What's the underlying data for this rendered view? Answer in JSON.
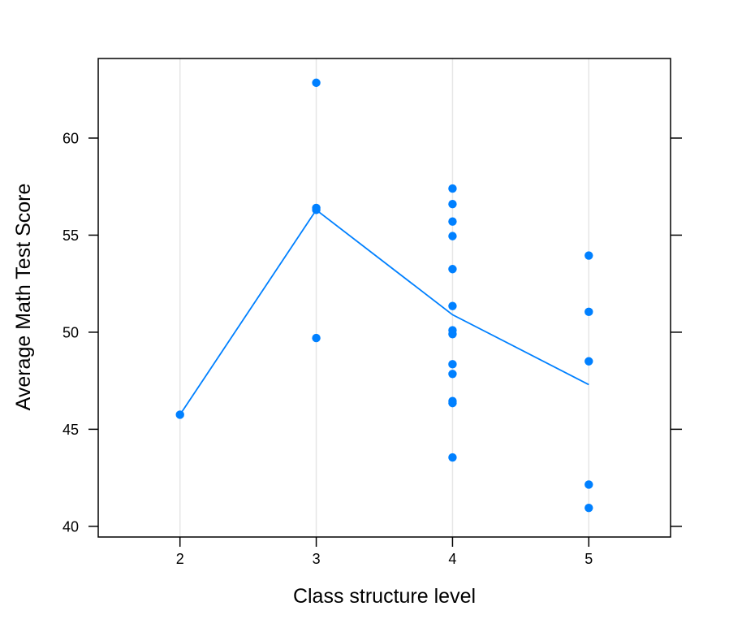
{
  "chart_data": {
    "type": "scatter",
    "title": "",
    "xlabel": "Class structure level",
    "ylabel": "Average Math Test Score",
    "xlim": [
      1.4,
      5.6
    ],
    "ylim": [
      39.45,
      64.1
    ],
    "x_ticks": [
      2,
      3,
      4,
      5
    ],
    "y_ticks": [
      40,
      45,
      50,
      55,
      60
    ],
    "grid": "vertical",
    "colors": {
      "point": "#0080ff",
      "line": "#0080ff",
      "grid": "#e6e6e6",
      "frame": "#000000"
    },
    "points": [
      {
        "x": 2,
        "y": 45.75
      },
      {
        "x": 3,
        "y": 62.85
      },
      {
        "x": 3,
        "y": 56.4
      },
      {
        "x": 3,
        "y": 56.3
      },
      {
        "x": 3,
        "y": 49.7
      },
      {
        "x": 4,
        "y": 57.4
      },
      {
        "x": 4,
        "y": 56.6
      },
      {
        "x": 4,
        "y": 55.7
      },
      {
        "x": 4,
        "y": 54.95
      },
      {
        "x": 4,
        "y": 53.25
      },
      {
        "x": 4,
        "y": 51.35
      },
      {
        "x": 4,
        "y": 50.1
      },
      {
        "x": 4,
        "y": 49.9
      },
      {
        "x": 4,
        "y": 48.35
      },
      {
        "x": 4,
        "y": 47.85
      },
      {
        "x": 4,
        "y": 46.45
      },
      {
        "x": 4,
        "y": 46.35
      },
      {
        "x": 4,
        "y": 43.55
      },
      {
        "x": 5,
        "y": 53.95
      },
      {
        "x": 5,
        "y": 51.05
      },
      {
        "x": 5,
        "y": 48.5
      },
      {
        "x": 5,
        "y": 42.15
      },
      {
        "x": 5,
        "y": 40.95
      }
    ],
    "mean_line": [
      {
        "x": 2,
        "y": 45.75
      },
      {
        "x": 3,
        "y": 56.3
      },
      {
        "x": 4,
        "y": 50.9
      },
      {
        "x": 5,
        "y": 47.3
      }
    ]
  }
}
